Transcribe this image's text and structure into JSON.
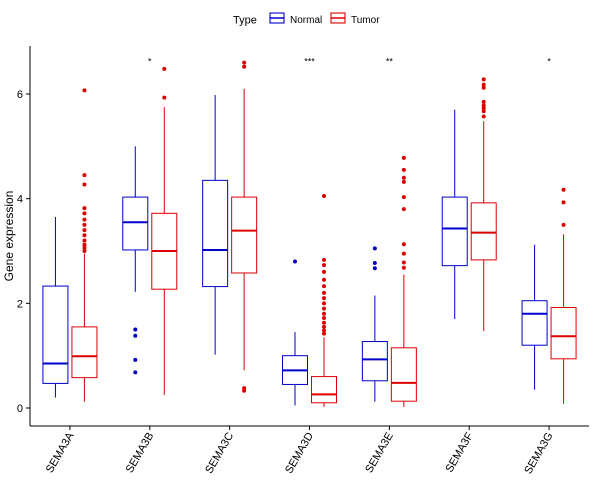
{
  "chart_data": {
    "type": "boxplot",
    "title": "",
    "xlabel": "",
    "ylabel": "Gene expression",
    "ylim": [
      -0.35,
      6.95
    ],
    "yticks": [
      0,
      2,
      4,
      6
    ],
    "grid": false,
    "legend": {
      "title": "Type",
      "placement": "top-center",
      "entries": [
        {
          "name": "Normal",
          "color": "#0000CC"
        },
        {
          "name": "Tumor",
          "color": "#DD0000"
        }
      ]
    },
    "categories": [
      "SEMA3A",
      "SEMA3B",
      "SEMA3C",
      "SEMA3D",
      "SEMA3E",
      "SEMA3F",
      "SEMA3G"
    ],
    "significance": [
      "",
      "*",
      "",
      "***",
      "**",
      "",
      "*"
    ],
    "series": [
      {
        "name": "Normal",
        "color": "#0000CC",
        "boxes": [
          {
            "whisker_low": 0.2,
            "q1": 0.47,
            "median": 0.85,
            "q3": 2.33,
            "whisker_high": 3.65,
            "outliers": []
          },
          {
            "whisker_low": 2.22,
            "q1": 3.02,
            "median": 3.55,
            "q3": 4.03,
            "whisker_high": 5.0,
            "outliers": [
              1.5,
              1.38,
              0.92,
              0.68
            ]
          },
          {
            "whisker_low": 1.02,
            "q1": 2.32,
            "median": 3.02,
            "q3": 4.35,
            "whisker_high": 5.98,
            "outliers": []
          },
          {
            "whisker_low": 0.05,
            "q1": 0.45,
            "median": 0.72,
            "q3": 1.0,
            "whisker_high": 1.45,
            "outliers": [
              2.8
            ]
          },
          {
            "whisker_low": 0.12,
            "q1": 0.52,
            "median": 0.93,
            "q3": 1.27,
            "whisker_high": 2.15,
            "outliers": [
              3.05,
              2.77,
              2.67
            ]
          },
          {
            "whisker_low": 1.7,
            "q1": 2.72,
            "median": 3.43,
            "q3": 4.03,
            "whisker_high": 5.7,
            "outliers": []
          },
          {
            "whisker_low": 0.35,
            "q1": 1.2,
            "median": 1.8,
            "q3": 2.05,
            "whisker_high": 3.12,
            "outliers": []
          }
        ]
      },
      {
        "name": "Tumor",
        "color": "#DD0000",
        "boxes": [
          {
            "whisker_low": 0.12,
            "q1": 0.58,
            "median": 0.99,
            "q3": 1.55,
            "whisker_high": 2.95,
            "outliers": [
              6.07,
              4.45,
              4.27,
              3.82,
              3.72,
              3.6,
              3.5,
              3.4,
              3.3,
              3.2,
              3.12,
              3.06,
              3.0
            ]
          },
          {
            "whisker_low": 0.25,
            "q1": 2.27,
            "median": 3.0,
            "q3": 3.72,
            "whisker_high": 5.75,
            "outliers": [
              6.48,
              5.93
            ]
          },
          {
            "whisker_low": 0.72,
            "q1": 2.58,
            "median": 3.39,
            "q3": 4.03,
            "whisker_high": 6.1,
            "outliers": [
              6.6,
              6.52,
              0.38,
              0.33
            ]
          },
          {
            "whisker_low": 0.02,
            "q1": 0.1,
            "median": 0.26,
            "q3": 0.6,
            "whisker_high": 1.35,
            "outliers": [
              4.05,
              2.83,
              2.73,
              2.6,
              2.45,
              2.33,
              2.2,
              2.1,
              2.0,
              1.9,
              1.8,
              1.72,
              1.63,
              1.55,
              1.48,
              1.42
            ]
          },
          {
            "whisker_low": 0.02,
            "q1": 0.13,
            "median": 0.48,
            "q3": 1.15,
            "whisker_high": 2.55,
            "outliers": [
              4.78,
              4.55,
              4.4,
              4.32,
              4.03,
              3.8,
              3.13,
              2.95,
              2.78,
              2.68
            ]
          },
          {
            "whisker_low": 1.47,
            "q1": 2.83,
            "median": 3.35,
            "q3": 3.92,
            "whisker_high": 5.48,
            "outliers": [
              6.28,
              6.18,
              6.12,
              5.85,
              5.78,
              5.73,
              5.67,
              5.57
            ]
          },
          {
            "whisker_low": 0.08,
            "q1": 0.94,
            "median": 1.37,
            "q3": 1.92,
            "whisker_high": 3.32,
            "outliers": [
              4.17,
              3.93,
              3.5
            ]
          }
        ]
      }
    ]
  }
}
